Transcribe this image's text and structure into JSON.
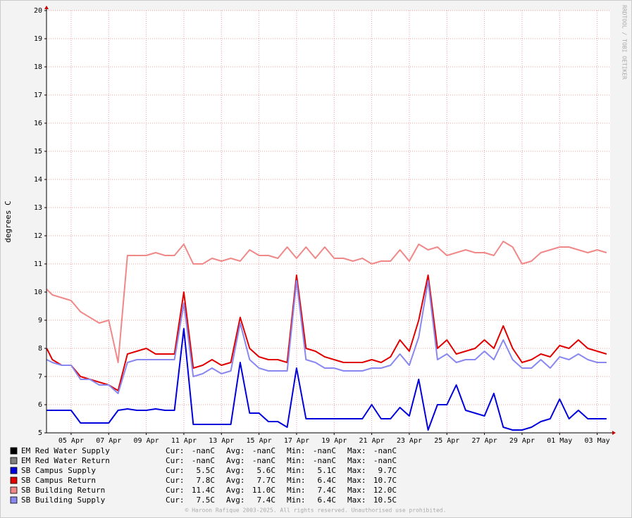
{
  "chart_data": {
    "type": "line",
    "y_label": "degrees C",
    "side_text": "RRDTOOL / TOBI OETIKER",
    "footer": "© Haroon Rafique 2003-2025. All rights reserved. Unauthorised use prohibited.",
    "grid": true,
    "xlim": [
      3.69,
      33.69
    ],
    "ylim": [
      5,
      20
    ],
    "yticks": [
      5,
      6,
      7,
      8,
      9,
      10,
      11,
      12,
      13,
      14,
      15,
      16,
      17,
      18,
      19,
      20
    ],
    "xticks": [
      {
        "value": 5,
        "label": "05 Apr"
      },
      {
        "value": 7,
        "label": "07 Apr"
      },
      {
        "value": 9,
        "label": "09 Apr"
      },
      {
        "value": 11,
        "label": "11 Apr"
      },
      {
        "value": 13,
        "label": "13 Apr"
      },
      {
        "value": 15,
        "label": "15 Apr"
      },
      {
        "value": 17,
        "label": "17 Apr"
      },
      {
        "value": 19,
        "label": "19 Apr"
      },
      {
        "value": 21,
        "label": "21 Apr"
      },
      {
        "value": 23,
        "label": "23 Apr"
      },
      {
        "value": 25,
        "label": "25 Apr"
      },
      {
        "value": 27,
        "label": "27 Apr"
      },
      {
        "value": 29,
        "label": "29 Apr"
      },
      {
        "value": 31,
        "label": "01 May"
      },
      {
        "value": 33,
        "label": "03 May"
      }
    ],
    "stat_labels": [
      "Cur:",
      "Avg:",
      "Min:",
      "Max:"
    ],
    "x": [
      3.7,
      4,
      4.5,
      5,
      5.5,
      6,
      6.5,
      7,
      7.5,
      8,
      8.5,
      9,
      9.5,
      10,
      10.5,
      11,
      11.5,
      12,
      12.5,
      13,
      13.5,
      14,
      14.5,
      15,
      15.5,
      16,
      16.5,
      17,
      17.5,
      18,
      18.5,
      19,
      19.5,
      20,
      20.5,
      21,
      21.5,
      22,
      22.5,
      23,
      23.5,
      24,
      24.5,
      25,
      25.5,
      26,
      26.5,
      27,
      27.5,
      28,
      28.5,
      29,
      29.5,
      30,
      30.5,
      31,
      31.5,
      32,
      32.5,
      33,
      33.5
    ],
    "series": [
      {
        "name": "EM Red Water Supply",
        "color": "#000000",
        "stats": [
          "-nanC",
          "-nanC",
          "-nanC",
          "-nanC"
        ],
        "values": [
          null,
          null,
          null,
          null,
          null,
          null,
          null,
          null,
          null,
          null,
          null,
          null,
          null,
          null,
          null,
          null,
          null,
          null,
          null,
          null,
          null,
          null,
          null,
          null,
          null,
          null,
          null,
          null,
          null,
          null,
          null,
          null,
          null,
          null,
          null,
          null,
          null,
          null,
          null,
          null,
          null,
          null,
          null,
          null,
          null,
          null,
          null,
          null,
          null,
          null,
          null,
          null,
          null,
          null,
          null,
          null,
          null,
          null,
          null,
          null,
          null
        ]
      },
      {
        "name": "EM Red Water Return",
        "color": "#808080",
        "stats": [
          "-nanC",
          "-nanC",
          "-nanC",
          "-nanC"
        ],
        "values": [
          null,
          null,
          null,
          null,
          null,
          null,
          null,
          null,
          null,
          null,
          null,
          null,
          null,
          null,
          null,
          null,
          null,
          null,
          null,
          null,
          null,
          null,
          null,
          null,
          null,
          null,
          null,
          null,
          null,
          null,
          null,
          null,
          null,
          null,
          null,
          null,
          null,
          null,
          null,
          null,
          null,
          null,
          null,
          null,
          null,
          null,
          null,
          null,
          null,
          null,
          null,
          null,
          null,
          null,
          null,
          null,
          null,
          null,
          null,
          null,
          null
        ]
      },
      {
        "name": "SB Campus Supply",
        "color": "#0000dd",
        "stats": [
          "5.5C",
          "5.6C",
          "5.1C",
          "9.7C"
        ],
        "values": [
          5.8,
          5.8,
          5.8,
          5.8,
          5.35,
          5.35,
          5.35,
          5.35,
          5.8,
          5.85,
          5.8,
          5.8,
          5.85,
          5.8,
          5.8,
          8.7,
          5.3,
          5.3,
          5.3,
          5.3,
          5.3,
          7.5,
          5.7,
          5.7,
          5.4,
          5.4,
          5.2,
          7.3,
          5.5,
          5.5,
          5.5,
          5.5,
          5.5,
          5.5,
          5.5,
          6.0,
          5.5,
          5.5,
          5.9,
          5.6,
          6.9,
          5.1,
          6.0,
          6.0,
          6.7,
          5.8,
          5.7,
          5.6,
          6.4,
          5.2,
          5.1,
          5.1,
          5.2,
          5.4,
          5.5,
          6.2,
          5.5,
          5.8,
          5.5,
          5.5,
          5.5
        ]
      },
      {
        "name": "SB Campus Return",
        "color": "#e00000",
        "stats": [
          "7.8C",
          "7.7C",
          "6.4C",
          "10.7C"
        ],
        "values": [
          8.0,
          7.6,
          7.4,
          7.4,
          7.0,
          6.9,
          6.8,
          6.7,
          6.5,
          7.8,
          7.9,
          8.0,
          7.8,
          7.8,
          7.8,
          10.0,
          7.3,
          7.4,
          7.6,
          7.4,
          7.5,
          9.1,
          8.0,
          7.7,
          7.6,
          7.6,
          7.5,
          10.6,
          8.0,
          7.9,
          7.7,
          7.6,
          7.5,
          7.5,
          7.5,
          7.6,
          7.5,
          7.7,
          8.3,
          7.9,
          9.0,
          10.6,
          8.0,
          8.3,
          7.8,
          7.9,
          8.0,
          8.3,
          8.0,
          8.8,
          8.0,
          7.5,
          7.6,
          7.8,
          7.7,
          8.1,
          8.0,
          8.3,
          8.0,
          7.9,
          7.8
        ]
      },
      {
        "name": "SB Building Return",
        "color": "#f08888",
        "stats": [
          "11.4C",
          "11.0C",
          "7.4C",
          "12.0C"
        ],
        "values": [
          10.1,
          9.9,
          9.8,
          9.7,
          9.3,
          9.1,
          8.9,
          9.0,
          7.5,
          11.3,
          11.3,
          11.3,
          11.4,
          11.3,
          11.3,
          11.7,
          11.0,
          11.0,
          11.2,
          11.1,
          11.2,
          11.1,
          11.5,
          11.3,
          11.3,
          11.2,
          11.6,
          11.2,
          11.6,
          11.2,
          11.6,
          11.2,
          11.2,
          11.1,
          11.2,
          11.0,
          11.1,
          11.1,
          11.5,
          11.1,
          11.7,
          11.5,
          11.6,
          11.3,
          11.4,
          11.5,
          11.4,
          11.4,
          11.3,
          11.8,
          11.6,
          11.0,
          11.1,
          11.4,
          11.5,
          11.6,
          11.6,
          11.5,
          11.4,
          11.5,
          11.4
        ]
      },
      {
        "name": "SB Building Supply",
        "color": "#8888f0",
        "stats": [
          "7.5C",
          "7.4C",
          "6.4C",
          "10.5C"
        ],
        "values": [
          7.6,
          7.5,
          7.4,
          7.4,
          6.9,
          6.9,
          6.7,
          6.7,
          6.4,
          7.5,
          7.6,
          7.6,
          7.6,
          7.6,
          7.6,
          9.6,
          7.0,
          7.1,
          7.3,
          7.1,
          7.2,
          8.9,
          7.6,
          7.3,
          7.2,
          7.2,
          7.2,
          10.4,
          7.6,
          7.5,
          7.3,
          7.3,
          7.2,
          7.2,
          7.2,
          7.3,
          7.3,
          7.4,
          7.8,
          7.4,
          8.4,
          10.4,
          7.6,
          7.8,
          7.5,
          7.6,
          7.6,
          7.9,
          7.6,
          8.3,
          7.6,
          7.3,
          7.3,
          7.6,
          7.3,
          7.7,
          7.6,
          7.8,
          7.6,
          7.5,
          7.5
        ]
      }
    ]
  }
}
